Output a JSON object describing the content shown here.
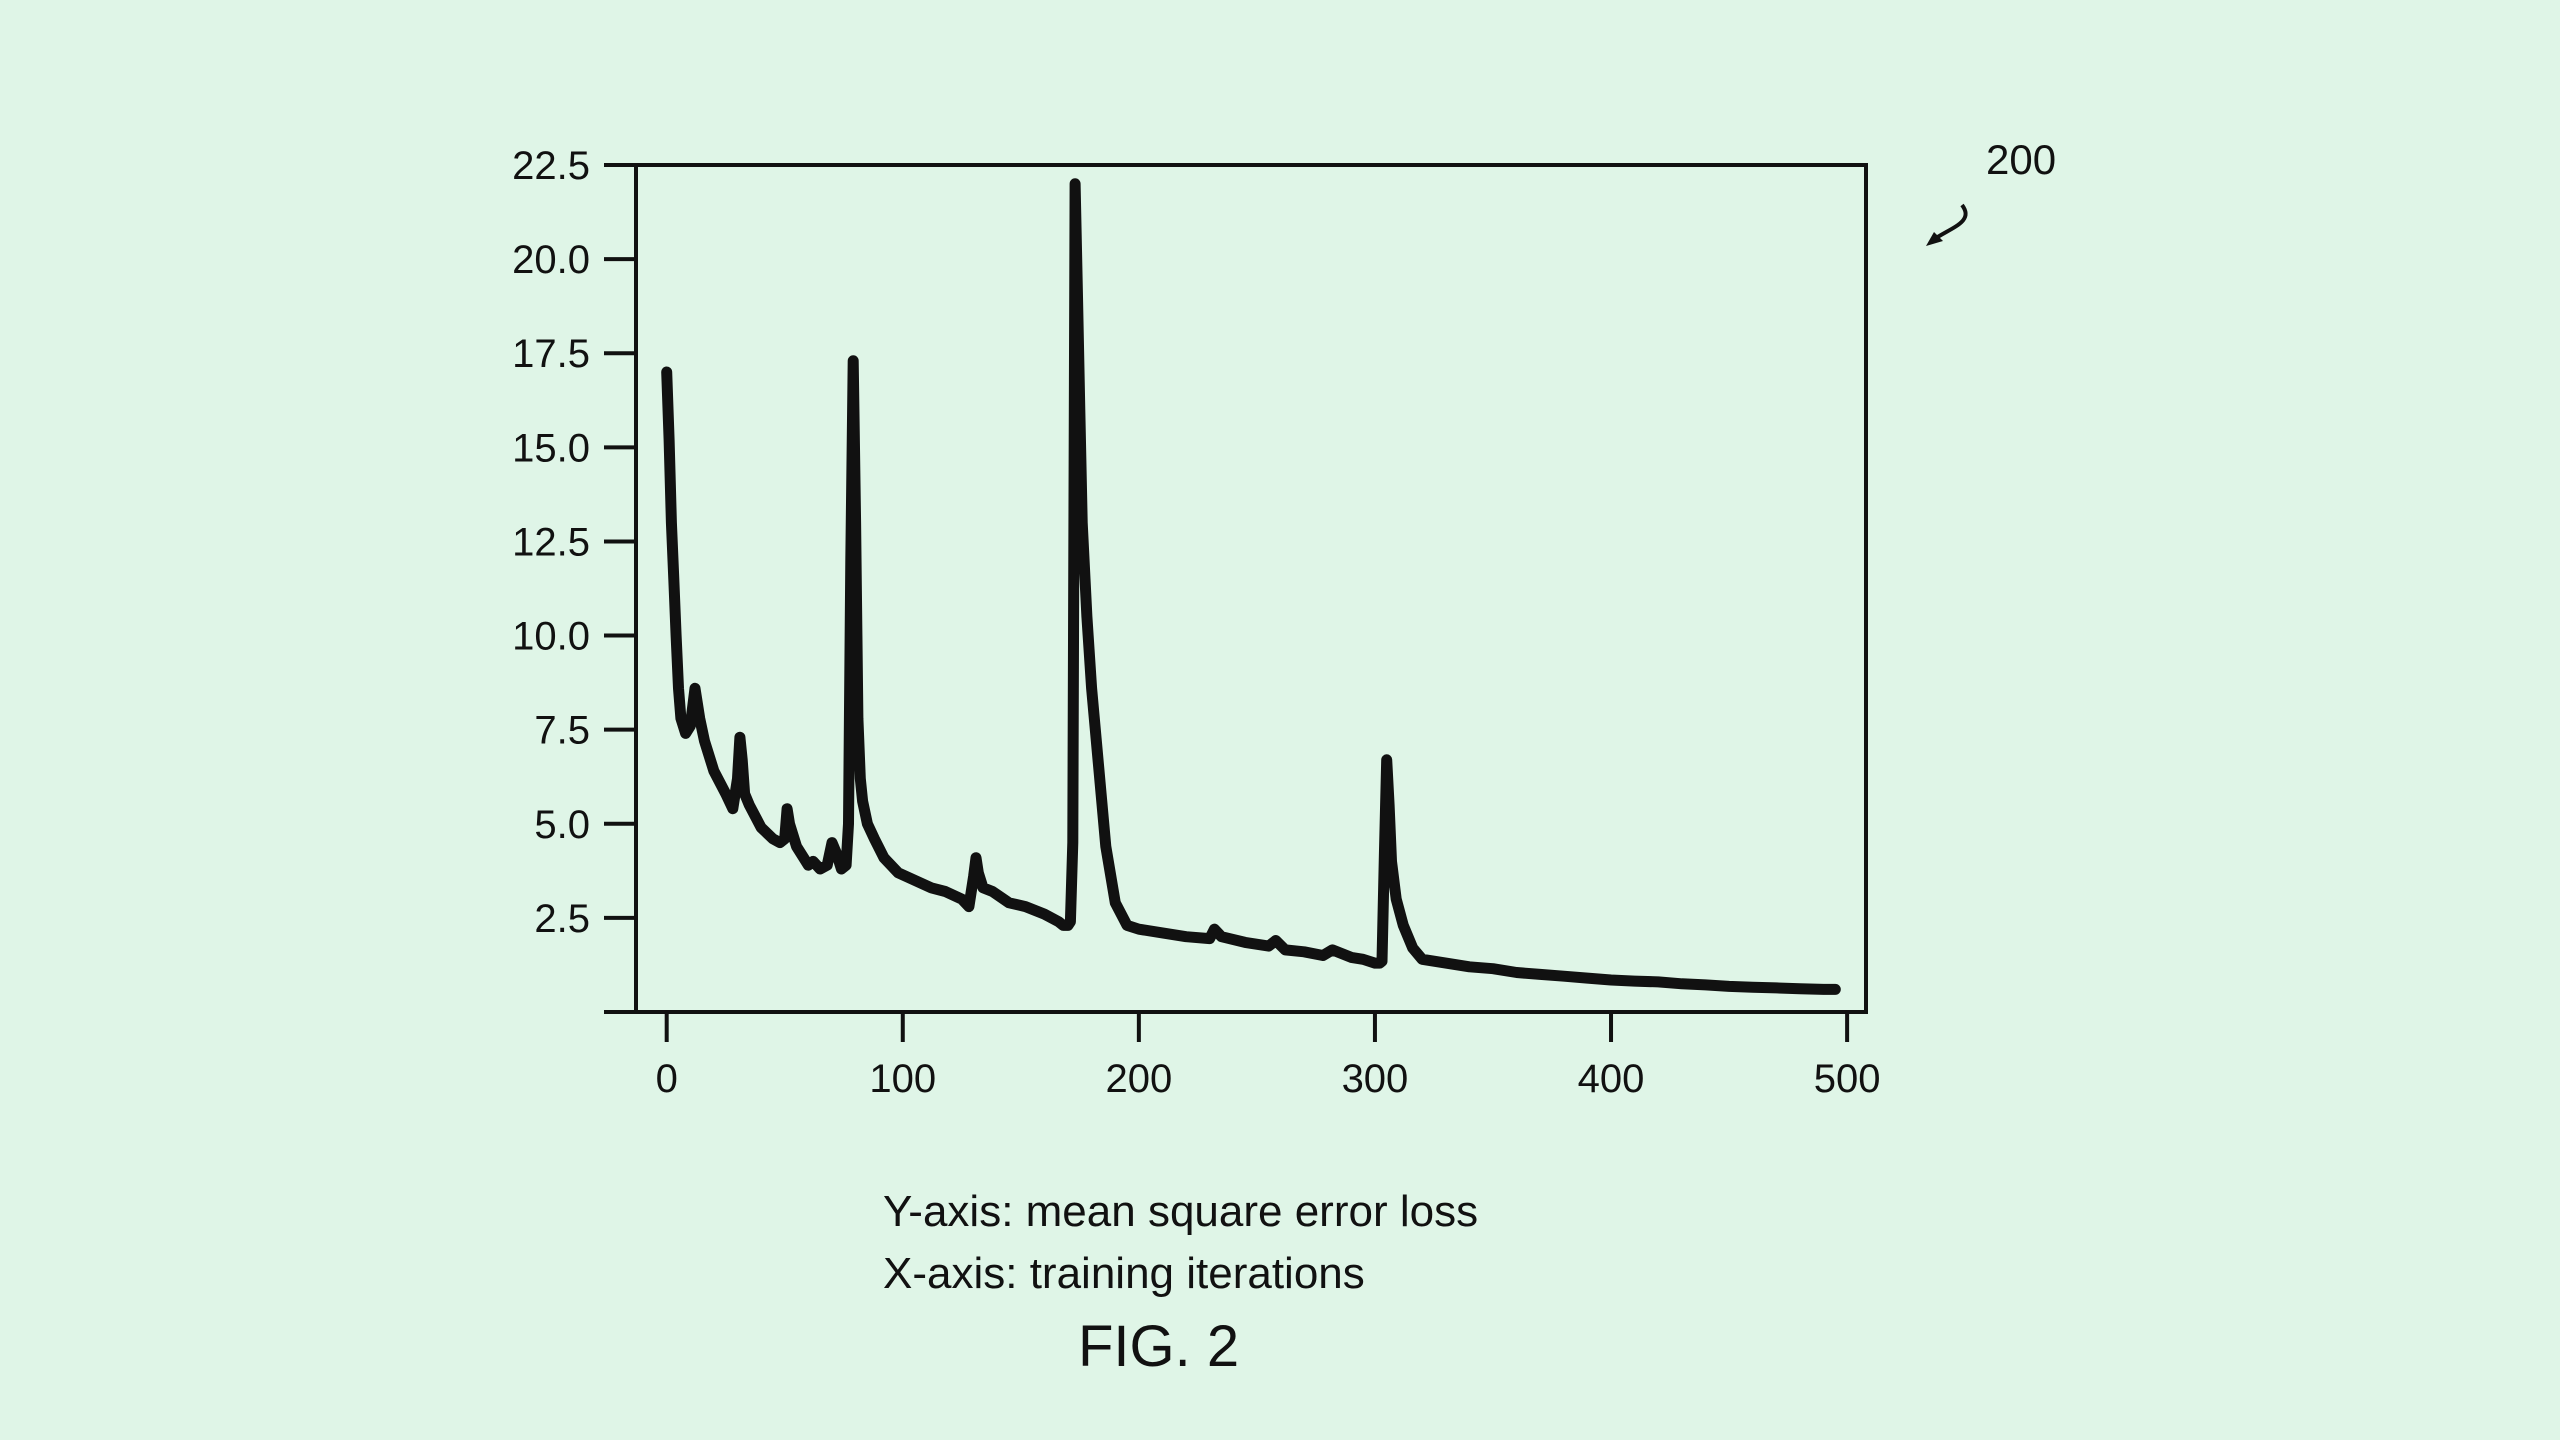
{
  "reference_numeral": "200",
  "figure_label": "FIG. 2",
  "captions": {
    "y_axis": "Y-axis: mean square error loss",
    "x_axis": "X-axis: training iterations"
  },
  "colors": {
    "background": "#dff5e7",
    "line": "#111111"
  },
  "chart_data": {
    "type": "line",
    "title": "",
    "xlabel": "",
    "ylabel": "",
    "xlim": [
      -13,
      508
    ],
    "ylim": [
      0,
      22.5
    ],
    "x_ticks": [
      0,
      100,
      200,
      300,
      400,
      500
    ],
    "x_tick_labels": [
      "0",
      "100",
      "200",
      "300",
      "400",
      "500"
    ],
    "y_ticks": [
      2.5,
      5.0,
      7.5,
      10.0,
      12.5,
      15.0,
      17.5,
      20.0,
      22.5
    ],
    "y_tick_labels": [
      "2.5",
      "5.0",
      "7.5",
      "10.0",
      "12.5",
      "15.0",
      "17.5",
      "20.0",
      "22.5"
    ],
    "grid": false,
    "series": [
      {
        "x": [
          0,
          1,
          2,
          3,
          4,
          5,
          6,
          8,
          10,
          12,
          14,
          16,
          20,
          25,
          28,
          30,
          31,
          32,
          33,
          35,
          40,
          45,
          48,
          50,
          51,
          52,
          55,
          58,
          60,
          62,
          65,
          68,
          70,
          72,
          74,
          76,
          77,
          78,
          79,
          80,
          81,
          82,
          83,
          85,
          88,
          92,
          98,
          105,
          112,
          118,
          125,
          128,
          130,
          131,
          132,
          134,
          138,
          145,
          152,
          160,
          166,
          168,
          170,
          171,
          172,
          173,
          174,
          175,
          176,
          178,
          180,
          183,
          186,
          190,
          195,
          200,
          210,
          220,
          230,
          232,
          235,
          245,
          255,
          258,
          262,
          270,
          278,
          282,
          290,
          295,
          300,
          302,
          303,
          304,
          305,
          306,
          307,
          309,
          312,
          316,
          320,
          325,
          330,
          340,
          350,
          360,
          370,
          380,
          390,
          400,
          410,
          420,
          430,
          440,
          450,
          460,
          470,
          480,
          490,
          495
        ],
        "y": [
          17.0,
          15.2,
          13.0,
          11.5,
          10.0,
          8.6,
          7.8,
          7.4,
          7.6,
          8.6,
          7.8,
          7.2,
          6.4,
          5.8,
          5.4,
          6.2,
          7.3,
          6.7,
          5.8,
          5.5,
          4.9,
          4.6,
          4.5,
          4.6,
          5.4,
          5.0,
          4.4,
          4.1,
          3.9,
          4.0,
          3.8,
          3.9,
          4.5,
          4.2,
          3.8,
          3.9,
          5.0,
          12.0,
          17.3,
          13.0,
          7.8,
          6.2,
          5.6,
          5.0,
          4.6,
          4.1,
          3.7,
          3.5,
          3.3,
          3.2,
          3.0,
          2.8,
          3.6,
          4.1,
          3.7,
          3.3,
          3.2,
          2.9,
          2.8,
          2.6,
          2.4,
          2.3,
          2.3,
          2.4,
          4.5,
          22.0,
          19.0,
          16.0,
          13.0,
          10.5,
          8.6,
          6.5,
          4.4,
          2.9,
          2.3,
          2.2,
          2.1,
          2.0,
          1.95,
          2.2,
          2.0,
          1.85,
          1.75,
          1.9,
          1.65,
          1.6,
          1.5,
          1.65,
          1.45,
          1.4,
          1.3,
          1.3,
          1.35,
          4.2,
          6.7,
          5.5,
          4.0,
          3.0,
          2.3,
          1.7,
          1.4,
          1.35,
          1.3,
          1.2,
          1.15,
          1.05,
          1.0,
          0.95,
          0.9,
          0.85,
          0.82,
          0.8,
          0.75,
          0.72,
          0.68,
          0.66,
          0.64,
          0.62,
          0.6,
          0.6
        ]
      }
    ]
  }
}
